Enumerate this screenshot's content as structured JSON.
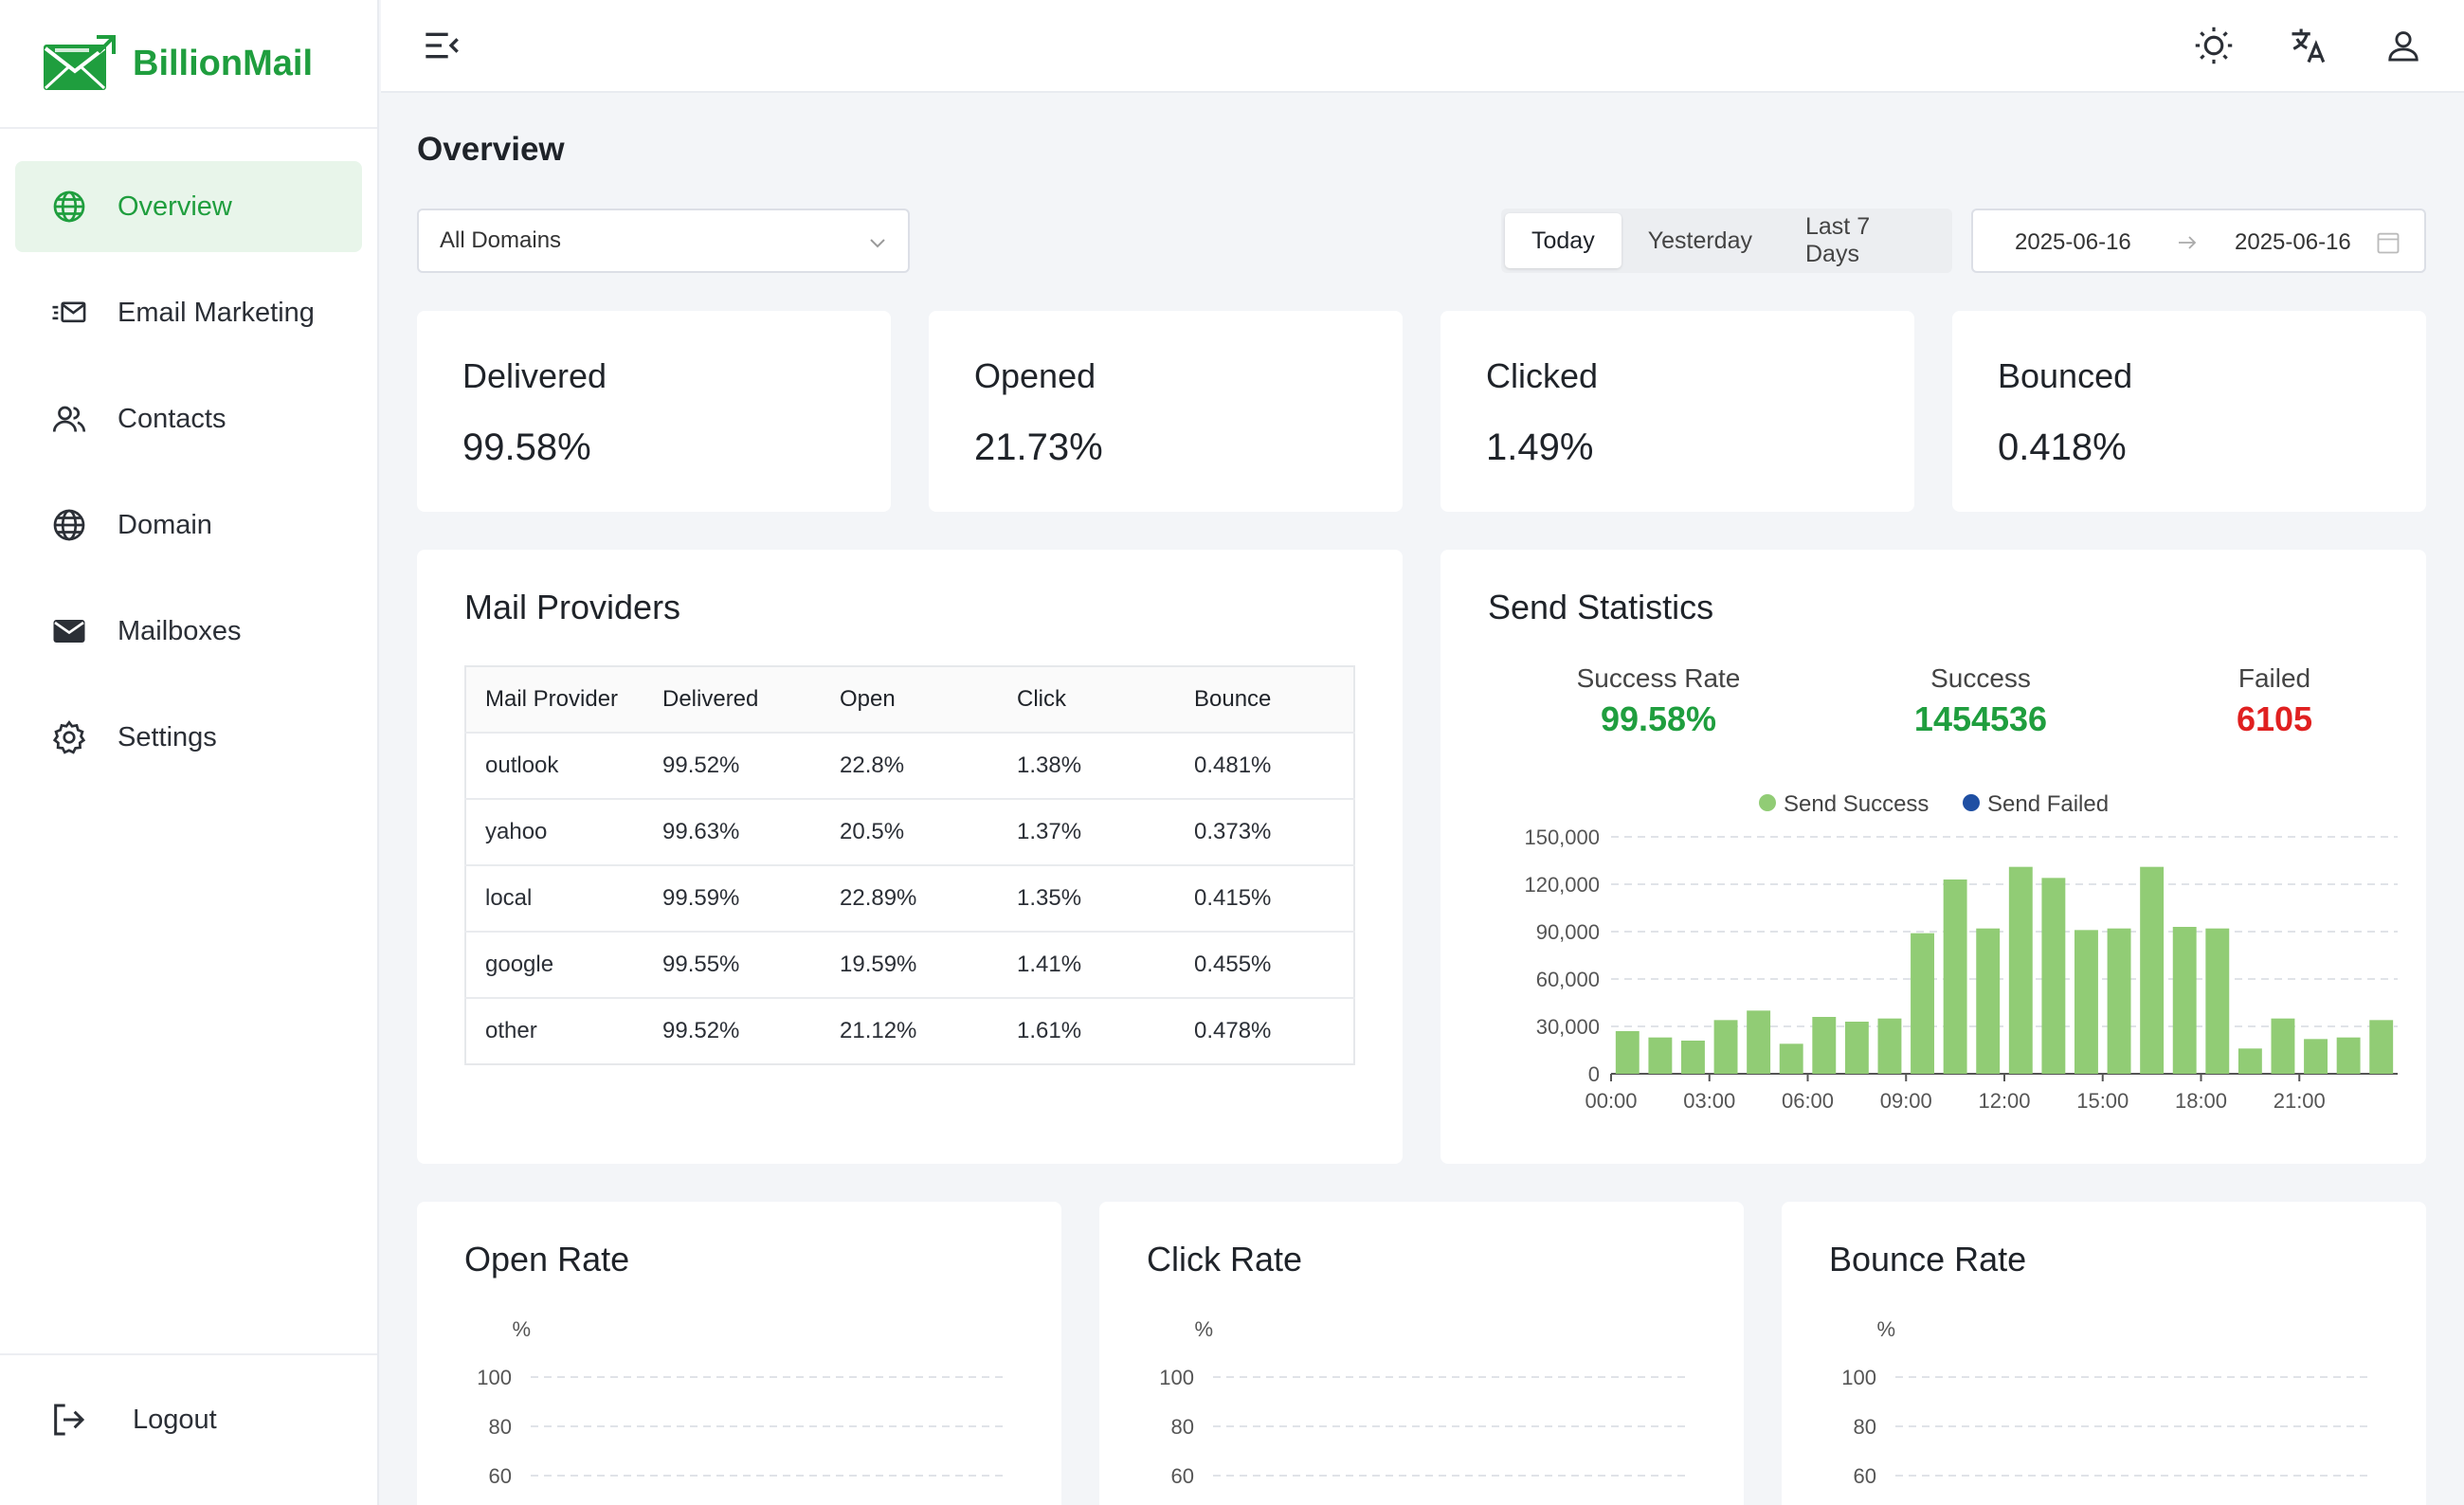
{
  "brand": {
    "name": "BillionMail",
    "color": "#1f9e3e"
  },
  "sidebar": {
    "items": [
      {
        "label": "Overview",
        "icon": "globe-icon",
        "active": true
      },
      {
        "label": "Email Marketing",
        "icon": "email-marketing-icon",
        "active": false
      },
      {
        "label": "Contacts",
        "icon": "contacts-icon",
        "active": false
      },
      {
        "label": "Domain",
        "icon": "globe-icon",
        "active": false
      },
      {
        "label": "Mailboxes",
        "icon": "mail-icon",
        "active": false
      },
      {
        "label": "Settings",
        "icon": "gear-icon",
        "active": false
      }
    ],
    "logout_label": "Logout"
  },
  "topbar": {
    "icons": [
      "menu-fold-icon",
      "sun-icon",
      "translate-icon",
      "user-icon"
    ]
  },
  "page": {
    "title": "Overview",
    "domain_select": "All Domains",
    "range_tabs": [
      "Today",
      "Yesterday",
      "Last 7 Days"
    ],
    "date_start": "2025-06-16",
    "date_end": "2025-06-16"
  },
  "stats": [
    {
      "title": "Delivered",
      "value": "99.58%"
    },
    {
      "title": "Opened",
      "value": "21.73%"
    },
    {
      "title": "Clicked",
      "value": "1.49%"
    },
    {
      "title": "Bounced",
      "value": "0.418%"
    }
  ],
  "providers": {
    "title": "Mail Providers",
    "columns": [
      "Mail Provider",
      "Delivered",
      "Open",
      "Click",
      "Bounce"
    ],
    "rows": [
      [
        "outlook",
        "99.52%",
        "22.8%",
        "1.38%",
        "0.481%"
      ],
      [
        "yahoo",
        "99.63%",
        "20.5%",
        "1.37%",
        "0.373%"
      ],
      [
        "local",
        "99.59%",
        "22.89%",
        "1.35%",
        "0.415%"
      ],
      [
        "google",
        "99.55%",
        "19.59%",
        "1.41%",
        "0.455%"
      ],
      [
        "other",
        "99.52%",
        "21.12%",
        "1.61%",
        "0.478%"
      ]
    ]
  },
  "send_stats": {
    "title": "Send Statistics",
    "success_rate_label": "Success Rate",
    "success_rate": "99.58%",
    "success_label": "Success",
    "success": "1454536",
    "failed_label": "Failed",
    "failed": "6105",
    "success_color": "#1f9e3e",
    "failed_color": "#e02020"
  },
  "rate_cards": [
    {
      "title": "Open Rate",
      "unit": "%"
    },
    {
      "title": "Click Rate",
      "unit": "%"
    },
    {
      "title": "Bounce Rate",
      "unit": "%"
    }
  ],
  "chart_data": [
    {
      "type": "bar",
      "title": "Send Statistics",
      "series": [
        {
          "name": "Send Success",
          "color": "#91cc75",
          "values": [
            27000,
            23000,
            21000,
            34000,
            40000,
            19000,
            36000,
            33000,
            35000,
            89000,
            123000,
            92000,
            131000,
            124000,
            91000,
            92000,
            131000,
            93000,
            92000,
            16000,
            35000,
            22000,
            23000,
            34000
          ]
        },
        {
          "name": "Send Failed",
          "color": "#1f4fa3",
          "values": [
            100,
            80,
            70,
            120,
            150,
            60,
            130,
            110,
            120,
            370,
            520,
            380,
            560,
            530,
            380,
            390,
            560,
            390,
            380,
            60,
            130,
            80,
            90,
            120
          ]
        }
      ],
      "categories": [
        "00:00",
        "01:00",
        "02:00",
        "03:00",
        "04:00",
        "05:00",
        "06:00",
        "07:00",
        "08:00",
        "09:00",
        "10:00",
        "11:00",
        "12:00",
        "13:00",
        "14:00",
        "15:00",
        "16:00",
        "17:00",
        "18:00",
        "19:00",
        "20:00",
        "21:00",
        "22:00",
        "23:00"
      ],
      "x_tick_labels": [
        "00:00",
        "03:00",
        "06:00",
        "09:00",
        "12:00",
        "15:00",
        "18:00",
        "21:00"
      ],
      "y_ticks": [
        "0",
        "30,000",
        "60,000",
        "90,000",
        "120,000",
        "150,000"
      ],
      "ylim": [
        0,
        150000
      ],
      "legend": "top-center"
    },
    {
      "type": "line",
      "title": "Open Rate",
      "ylabel": "%",
      "y_ticks": [
        "100",
        "80",
        "60"
      ]
    },
    {
      "type": "line",
      "title": "Click Rate",
      "ylabel": "%",
      "y_ticks": [
        "100",
        "80",
        "60"
      ]
    },
    {
      "type": "line",
      "title": "Bounce Rate",
      "ylabel": "%",
      "y_ticks": [
        "100",
        "80",
        "60"
      ]
    }
  ]
}
